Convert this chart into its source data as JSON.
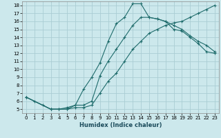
{
  "title": "",
  "xlabel": "Humidex (Indice chaleur)",
  "bg_color": "#cce8ec",
  "grid_color": "#aacdd4",
  "line_color": "#1e6b6b",
  "xlim": [
    -0.5,
    23.5
  ],
  "ylim": [
    4.5,
    18.5
  ],
  "xticks": [
    0,
    1,
    2,
    3,
    4,
    5,
    6,
    7,
    8,
    9,
    10,
    11,
    12,
    13,
    14,
    15,
    16,
    17,
    18,
    19,
    20,
    21,
    22,
    23
  ],
  "yticks": [
    5,
    6,
    7,
    8,
    9,
    10,
    11,
    12,
    13,
    14,
    15,
    16,
    17,
    18
  ],
  "line1_x": [
    0,
    1,
    2,
    3,
    4,
    5,
    6,
    7,
    8,
    9,
    10,
    11,
    12,
    13,
    14,
    15,
    16,
    17,
    18,
    19,
    20,
    21,
    22,
    23
  ],
  "line1_y": [
    6.5,
    6.0,
    5.5,
    5.0,
    5.0,
    5.2,
    5.5,
    7.5,
    9.0,
    10.8,
    13.5,
    15.7,
    16.5,
    18.2,
    18.2,
    16.5,
    16.3,
    16.0,
    15.0,
    14.8,
    14.0,
    13.2,
    12.2,
    12.0
  ],
  "line2_x": [
    0,
    3,
    4,
    5,
    6,
    7,
    8,
    9,
    10,
    11,
    12,
    13,
    14,
    15,
    16,
    17,
    18,
    19,
    20,
    21,
    22,
    23
  ],
  "line2_y": [
    6.5,
    5.0,
    5.0,
    5.0,
    5.5,
    5.5,
    6.0,
    9.2,
    11.0,
    12.5,
    14.0,
    15.5,
    16.5,
    16.5,
    16.3,
    16.0,
    15.5,
    15.0,
    14.2,
    13.5,
    13.0,
    12.2
  ],
  "line3_x": [
    0,
    3,
    5,
    6,
    7,
    8,
    9,
    10,
    11,
    12,
    13,
    14,
    15,
    16,
    17,
    18,
    19,
    20,
    21,
    22,
    23
  ],
  "line3_y": [
    6.5,
    5.0,
    5.0,
    5.2,
    5.2,
    5.5,
    7.0,
    8.5,
    9.5,
    11.0,
    12.5,
    13.5,
    14.5,
    15.0,
    15.5,
    15.8,
    16.0,
    16.5,
    17.0,
    17.5,
    18.0
  ],
  "xlabel_fontsize": 6.0,
  "tick_fontsize": 5.0
}
